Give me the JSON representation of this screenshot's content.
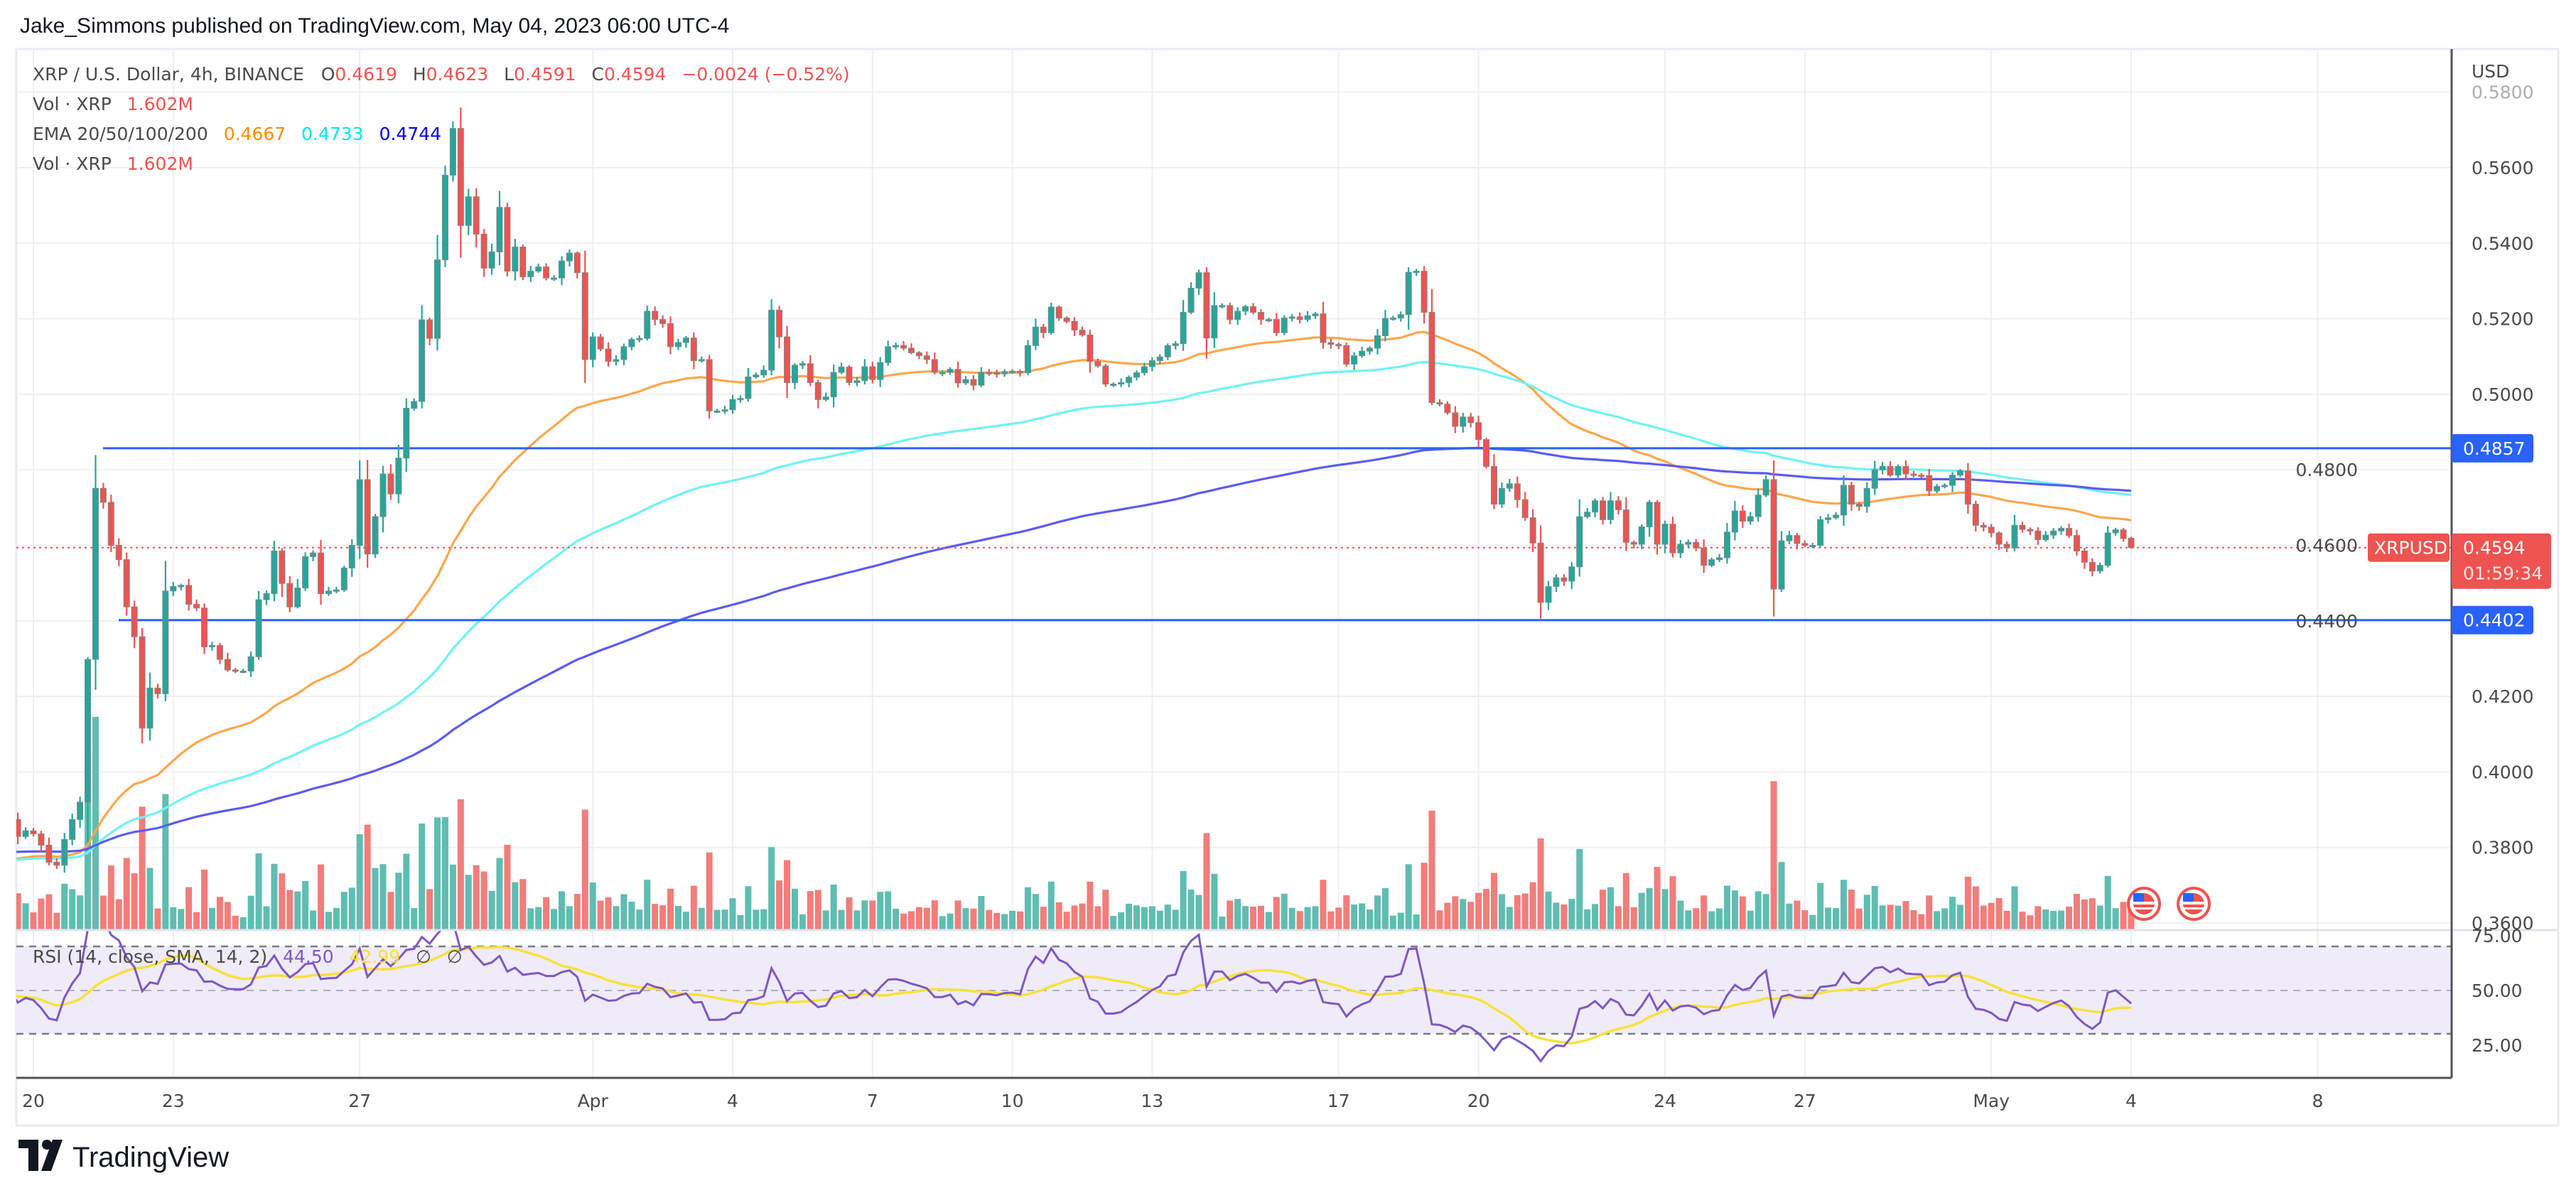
{
  "header": {
    "published": "Jake_Simmons published on TradingView.com, May 04, 2023 06:00 UTC-4"
  },
  "legend": {
    "symbol": "XRP / U.S. Dollar, 4h, BINANCE",
    "o_label": "O",
    "o": "0.4619",
    "h_label": "H",
    "h": "0.4623",
    "l_label": "L",
    "l": "0.4591",
    "c_label": "C",
    "c": "0.4594",
    "change": "−0.0024 (−0.52%)",
    "vol_label": "Vol · XRP",
    "vol": "1.602M",
    "ema_label": "EMA 20/50/100/200",
    "ema_a": "0.4667",
    "ema_b": "0.4733",
    "ema_c": "0.4744",
    "vol2_label": "Vol · XRP",
    "vol2": "1.602M",
    "rsi_label": "RSI (14, close, SMA, 14, 2)",
    "rsi": "44.50",
    "rsi_sma": "42.99",
    "na1": "∅",
    "na2": "∅"
  },
  "price_axis": {
    "currency": "USD",
    "ticks": [
      "0.5800",
      "0.5600",
      "0.5400",
      "0.5200",
      "0.5000",
      "0.4800",
      "0.4600",
      "0.4400",
      "0.4200",
      "0.4000",
      "0.3800",
      "0.3600"
    ],
    "rsi_ticks": [
      "75.00",
      "50.00",
      "25.00"
    ],
    "resistance": "0.4857",
    "support": "0.4402",
    "last_price": "0.4594",
    "countdown": "01:59:34",
    "symbol_tag": "XRPUSD"
  },
  "time_axis": {
    "ticks": [
      {
        "label": "20",
        "day": 0
      },
      {
        "label": "23",
        "day": 3
      },
      {
        "label": "27",
        "day": 7
      },
      {
        "label": "Apr",
        "day": 12
      },
      {
        "label": "4",
        "day": 15
      },
      {
        "label": "7",
        "day": 18
      },
      {
        "label": "10",
        "day": 21
      },
      {
        "label": "13",
        "day": 24
      },
      {
        "label": "17",
        "day": 28
      },
      {
        "label": "20",
        "day": 31
      },
      {
        "label": "24",
        "day": 35
      },
      {
        "label": "27",
        "day": 38
      },
      {
        "label": "May",
        "day": 42
      },
      {
        "label": "4",
        "day": 45
      },
      {
        "label": "8",
        "day": 49
      }
    ]
  },
  "logo": {
    "text": "TradingView"
  },
  "colors": {
    "up": "#26a69a",
    "down": "#ef5350",
    "vol_up": "#5fbdb2",
    "vol_down": "#f27d7b",
    "ema_a": "#ffa64d",
    "ema_b": "#6ff3f3",
    "ema_c": "#5b5bf5",
    "hline": "#2962ff",
    "rsi": "#7e57c2",
    "rsi_sma": "#f7e13a"
  },
  "chart_data": {
    "type": "candlestick",
    "title": "XRP / U.S. Dollar, 4h, BINANCE",
    "interval_hours": 4,
    "first_day": "Mar 20",
    "last_candle_day": 45.0,
    "ylim": [
      0.36,
      0.58
    ],
    "last_ohlc": {
      "open": 0.4619,
      "high": 0.4623,
      "low": 0.4591,
      "close": 0.4594
    },
    "horizontal_levels": [
      0.4857,
      0.4402
    ],
    "ema_periods": [
      50,
      100,
      200
    ],
    "ema_seed": {
      "50": 0.3764,
      "100": 0.3764,
      "200": 0.3787
    },
    "ema_last": [
      0.4667,
      0.4733,
      0.4744
    ],
    "volume_last_M": 1.602,
    "rsi": {
      "period": 14,
      "sma": 14,
      "last": 44.5,
      "sma_last": 42.99,
      "levels": [
        70,
        50,
        30
      ]
    },
    "closes": [
      0.3874,
      0.3829,
      0.3844,
      0.3836,
      0.3806,
      0.3761,
      0.3753,
      0.3821,
      0.3874,
      0.392,
      0.4298,
      0.4751,
      0.4714,
      0.46,
      0.4562,
      0.4437,
      0.4358,
      0.4116,
      0.4222,
      0.4207,
      0.4479,
      0.4491,
      0.4494,
      0.4444,
      0.4434,
      0.4331,
      0.4335,
      0.4298,
      0.427,
      0.4267,
      0.4267,
      0.4305,
      0.4456,
      0.4472,
      0.4585,
      0.4499,
      0.4437,
      0.4487,
      0.457,
      0.458,
      0.4472,
      0.4479,
      0.4482,
      0.454,
      0.46,
      0.4774,
      0.4577,
      0.4676,
      0.4789,
      0.4736,
      0.4831,
      0.4963,
      0.4981,
      0.5197,
      0.5148,
      0.5356,
      0.558,
      0.5704,
      0.5447,
      0.5523,
      0.5424,
      0.5334,
      0.5377,
      0.5495,
      0.5326,
      0.539,
      0.5311,
      0.5326,
      0.5337,
      0.5308,
      0.5308,
      0.5353,
      0.5374,
      0.5322,
      0.5092,
      0.5152,
      0.512,
      0.5087,
      0.5092,
      0.5126,
      0.5145,
      0.5148,
      0.522,
      0.5198,
      0.5187,
      0.5126,
      0.5137,
      0.5149,
      0.5089,
      0.5092,
      0.4956,
      0.4956,
      0.4959,
      0.4986,
      0.4989,
      0.5046,
      0.5051,
      0.5064,
      0.5223,
      0.5152,
      0.5031,
      0.5077,
      0.5081,
      0.5031,
      0.4986,
      0.4993,
      0.5058,
      0.5072,
      0.5031,
      0.5036,
      0.5073,
      0.5039,
      0.5084,
      0.5126,
      0.5129,
      0.5122,
      0.511,
      0.5102,
      0.5092,
      0.5058,
      0.5058,
      0.5066,
      0.503,
      0.5039,
      0.5024,
      0.5058,
      0.5057,
      0.5054,
      0.506,
      0.5061,
      0.5057,
      0.5129,
      0.5178,
      0.5163,
      0.5231,
      0.5202,
      0.5193,
      0.517,
      0.5157,
      0.5087,
      0.5075,
      0.5027,
      0.5027,
      0.5031,
      0.5045,
      0.5057,
      0.5073,
      0.5089,
      0.5099,
      0.5129,
      0.5134,
      0.5217,
      0.5281,
      0.5322,
      0.5149,
      0.5235,
      0.5235,
      0.5198,
      0.522,
      0.5232,
      0.5217,
      0.5198,
      0.5198,
      0.5163,
      0.5202,
      0.5205,
      0.5198,
      0.5208,
      0.5213,
      0.5137,
      0.5132,
      0.5129,
      0.508,
      0.5102,
      0.5114,
      0.5122,
      0.5155,
      0.5201,
      0.5202,
      0.5211,
      0.5323,
      0.5326,
      0.5217,
      0.4978,
      0.4974,
      0.4951,
      0.4915,
      0.494,
      0.4925,
      0.488,
      0.4809,
      0.4709,
      0.4751,
      0.4763,
      0.4721,
      0.4673,
      0.4606,
      0.4449,
      0.4491,
      0.4514,
      0.4505,
      0.4543,
      0.4676,
      0.4688,
      0.4718,
      0.4668,
      0.4718,
      0.4694,
      0.4608,
      0.4603,
      0.4649,
      0.4714,
      0.4603,
      0.4656,
      0.458,
      0.4603,
      0.4608,
      0.4593,
      0.4547,
      0.4562,
      0.4567,
      0.4635,
      0.4691,
      0.4664,
      0.4676,
      0.4733,
      0.4774,
      0.4484,
      0.4612,
      0.4626,
      0.4605,
      0.46,
      0.46,
      0.4668,
      0.4673,
      0.468,
      0.4759,
      0.4709,
      0.4703,
      0.4751,
      0.48,
      0.4809,
      0.4786,
      0.4809,
      0.4789,
      0.4786,
      0.4785,
      0.4744,
      0.4756,
      0.4759,
      0.4786,
      0.4797,
      0.4709,
      0.4653,
      0.4648,
      0.4633,
      0.4603,
      0.4593,
      0.4653,
      0.4642,
      0.4638,
      0.4615,
      0.4627,
      0.4638,
      0.4645,
      0.4626,
      0.4585,
      0.4555,
      0.4532,
      0.4547,
      0.4633,
      0.4641,
      0.4618,
      0.4594
    ]
  }
}
